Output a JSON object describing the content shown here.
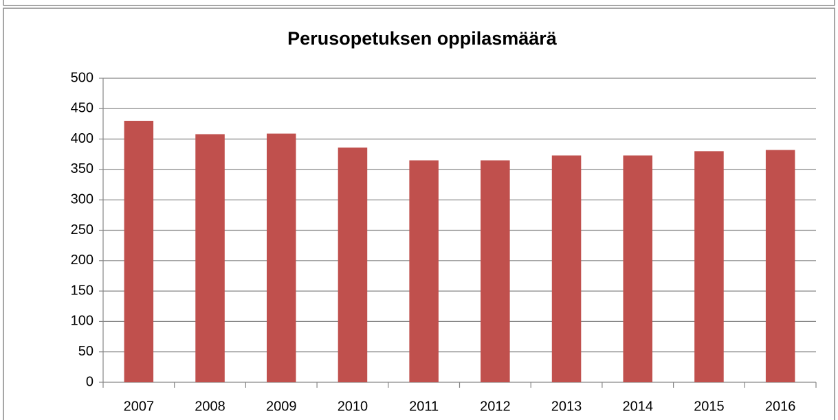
{
  "chart_data": {
    "type": "bar",
    "title": "Perusopetuksen oppilasmäärä",
    "categories": [
      "2007",
      "2008",
      "2009",
      "2010",
      "2011",
      "2012",
      "2013",
      "2014",
      "2015",
      "2016"
    ],
    "values": [
      430,
      408,
      409,
      386,
      365,
      365,
      373,
      373,
      380,
      382
    ],
    "color": "#c0504d",
    "ylim": [
      0,
      500
    ],
    "yticks": [
      0,
      50,
      100,
      150,
      200,
      250,
      300,
      350,
      400,
      450,
      500
    ],
    "grid": true
  }
}
